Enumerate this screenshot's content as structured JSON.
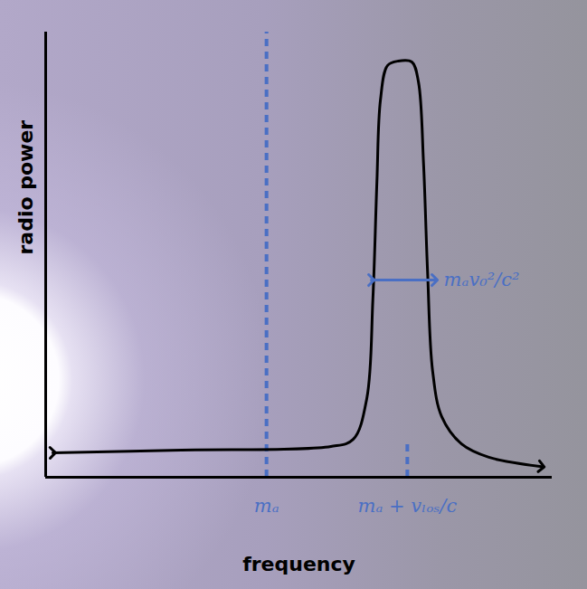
{
  "chart_data": {
    "type": "line",
    "x_label": "frequency",
    "y_label": "radio power",
    "xlim": [
      0,
      100
    ],
    "ylim": [
      0,
      100
    ],
    "xticks": [
      {
        "value": 43.6,
        "label": "mₐ"
      },
      {
        "value": 71.4,
        "label": "mₐ + vₗₒₛ/c"
      }
    ],
    "tick_labels": "x",
    "grid": false,
    "x": [
      1.4,
      26.8,
      56.3,
      60.7,
      63.4,
      64.6,
      65.4,
      66.1,
      67.5,
      69.6,
      72.3,
      73.6,
      74.6,
      75.4,
      76.4,
      78.2,
      82.1,
      87.5,
      97.9
    ],
    "values": [
      5.5,
      6.1,
      6.9,
      8.5,
      17.7,
      40.0,
      66.5,
      84.8,
      92.5,
      93.5,
      93.3,
      88.8,
      70.5,
      46.1,
      23.8,
      13.6,
      7.5,
      4.5,
      2.4
    ],
    "color": "#000000",
    "marker": "arrow",
    "reference_lines": [
      {
        "x": 43.6,
        "y": [
          0,
          100
        ],
        "color": "#4a6fc4",
        "line_style": "dashed"
      },
      {
        "x": 71.4,
        "y": [
          0,
          7.5
        ],
        "color": "#4a6fc4",
        "line_style": "dashed"
      }
    ],
    "annotations": [
      {
        "text": "mₐv₀²/c²",
        "x": [
          64.3,
          76.8
        ],
        "y": 44.3,
        "color": "#4a6fc4",
        "marker": "arrow"
      }
    ]
  }
}
